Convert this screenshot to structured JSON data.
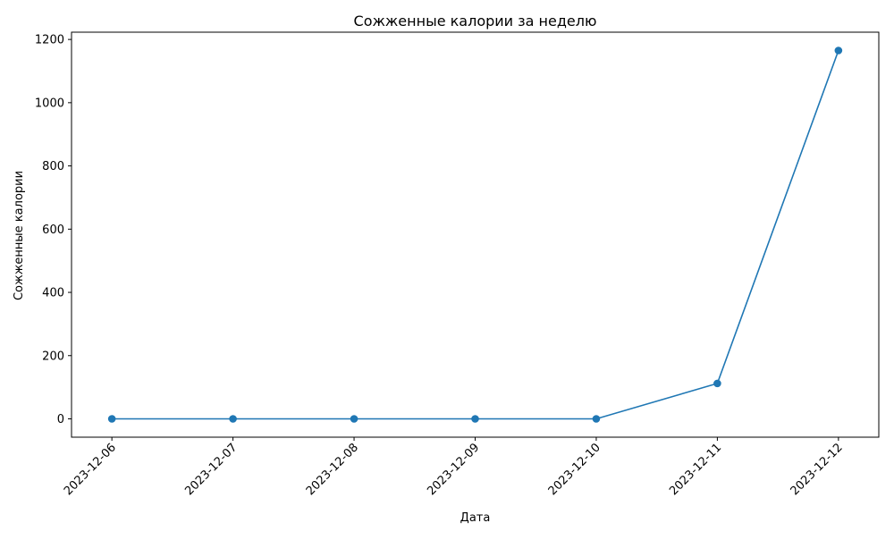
{
  "chart_data": {
    "type": "line",
    "title": "Сожженные калории за неделю",
    "xlabel": "Дата",
    "ylabel": "Сожженные калории",
    "x": [
      "2023-12-06",
      "2023-12-07",
      "2023-12-08",
      "2023-12-09",
      "2023-12-10",
      "2023-12-11",
      "2023-12-12"
    ],
    "series": [
      {
        "values": [
          0,
          0,
          0,
          0,
          0,
          112,
          1165
        ]
      }
    ],
    "yticks": [
      "0",
      "200",
      "400",
      "600",
      "800",
      "1000",
      "1200"
    ],
    "ylim": [
      -58,
      1223
    ],
    "grid": false,
    "legend": "none",
    "markers": "circle",
    "line_color": "#1f77b4"
  }
}
